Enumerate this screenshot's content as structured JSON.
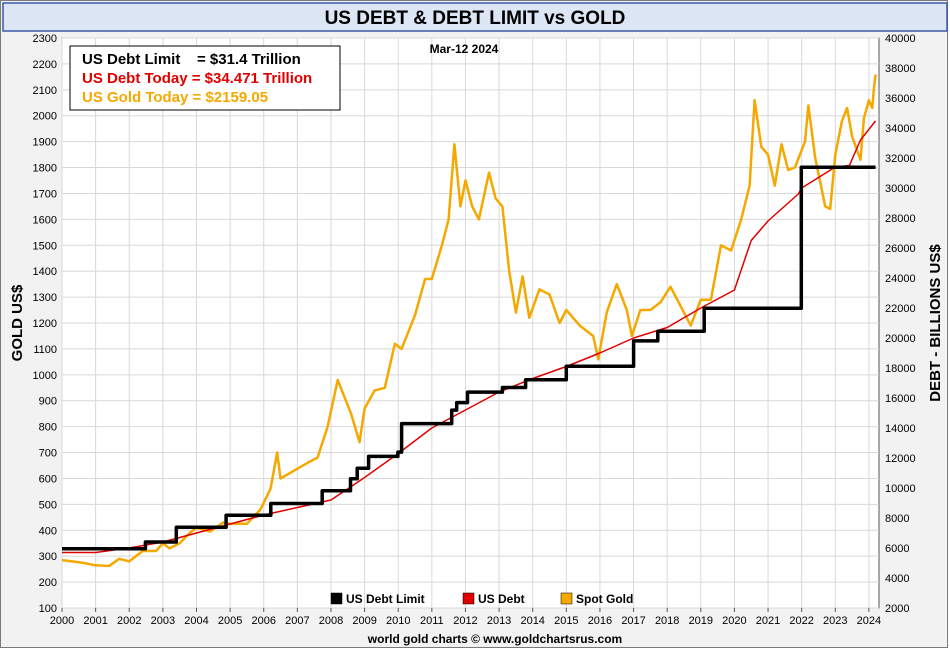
{
  "colors": {
    "debt_limit": "#000000",
    "us_debt": "#e00000",
    "spot_gold": "#f5a800",
    "title_bar": "#dde6f5",
    "title_border": "#3b5aa8"
  },
  "chart_data": {
    "type": "line",
    "title": "US DEBT & DEBT LIMIT vs GOLD",
    "date_label": "Mar-12  2024",
    "footer": "world gold charts © www.goldchartsrus.com",
    "left_axis_label": "GOLD US$",
    "right_axis_label": "DEBT - BILLIONS US$",
    "x_ticks": [
      "2000",
      "2001",
      "2002",
      "2003",
      "2004",
      "2005",
      "2006",
      "2007",
      "2008",
      "2009",
      "2010",
      "2011",
      "2012",
      "2013",
      "2014",
      "2015",
      "2016",
      "2017",
      "2018",
      "2019",
      "2020",
      "2021",
      "2022",
      "2023",
      "2024"
    ],
    "left_ylim": [
      100,
      2300
    ],
    "left_ticks": [
      "100",
      "200",
      "300",
      "400",
      "500",
      "600",
      "700",
      "800",
      "900",
      "1000",
      "1100",
      "1200",
      "1300",
      "1400",
      "1500",
      "1600",
      "1700",
      "1800",
      "1900",
      "2000",
      "2100",
      "2200",
      "2300"
    ],
    "right_ylim": [
      2000,
      40000
    ],
    "right_ticks": [
      "2000",
      "4000",
      "6000",
      "8000",
      "10000",
      "12000",
      "14000",
      "16000",
      "18000",
      "20000",
      "22000",
      "24000",
      "26000",
      "28000",
      "30000",
      "32000",
      "34000",
      "36000",
      "38000",
      "40000"
    ],
    "grid": true,
    "info_box": [
      {
        "text": "US Debt Limit    = $31.4 Trillion",
        "series": "debt_limit"
      },
      {
        "text": "US Debt Today = $34.471 Trillion",
        "series": "us_debt"
      },
      {
        "text": "US Gold Today = $2159.05",
        "series": "spot_gold"
      }
    ],
    "legend_position": "bottom-center",
    "series": [
      {
        "name": "US Debt Limit",
        "key": "debt_limit",
        "axis": "right",
        "step": true,
        "points": [
          [
            2000.0,
            5950
          ],
          [
            2002.48,
            6400
          ],
          [
            2003.4,
            7384
          ],
          [
            2004.88,
            8184
          ],
          [
            2006.21,
            8965
          ],
          [
            2007.74,
            9815
          ],
          [
            2008.58,
            10615
          ],
          [
            2008.78,
            11315
          ],
          [
            2009.12,
            12104
          ],
          [
            2009.99,
            12394
          ],
          [
            2010.1,
            14294
          ],
          [
            2011.59,
            15194
          ],
          [
            2011.74,
            15694
          ],
          [
            2012.06,
            16394
          ],
          [
            2013.1,
            16699
          ],
          [
            2013.79,
            17212
          ],
          [
            2015.0,
            18113
          ],
          [
            2017.0,
            19808
          ],
          [
            2017.72,
            20456
          ],
          [
            2019.1,
            21988
          ],
          [
            2021.99,
            31381
          ],
          [
            2024.2,
            31381
          ]
        ]
      },
      {
        "name": "US Debt",
        "key": "us_debt",
        "axis": "right",
        "points": [
          [
            2000.0,
            5700
          ],
          [
            2001.0,
            5700
          ],
          [
            2002.0,
            6000
          ],
          [
            2003.0,
            6400
          ],
          [
            2004.0,
            7000
          ],
          [
            2005.0,
            7600
          ],
          [
            2006.0,
            8200
          ],
          [
            2007.0,
            8700
          ],
          [
            2008.0,
            9200
          ],
          [
            2009.0,
            10700
          ],
          [
            2010.0,
            12300
          ],
          [
            2011.0,
            14000
          ],
          [
            2012.0,
            15200
          ],
          [
            2013.0,
            16400
          ],
          [
            2014.0,
            17300
          ],
          [
            2015.0,
            18100
          ],
          [
            2016.0,
            19000
          ],
          [
            2017.0,
            20000
          ],
          [
            2018.0,
            20700
          ],
          [
            2019.0,
            22000
          ],
          [
            2020.0,
            23200
          ],
          [
            2020.5,
            26500
          ],
          [
            2021.0,
            27800
          ],
          [
            2021.9,
            29600
          ],
          [
            2022.0,
            30000
          ],
          [
            2023.0,
            31400
          ],
          [
            2023.42,
            31500
          ],
          [
            2023.75,
            33200
          ],
          [
            2024.2,
            34471
          ]
        ]
      },
      {
        "name": "Spot Gold",
        "key": "spot_gold",
        "axis": "left",
        "points": [
          [
            2000.0,
            285
          ],
          [
            2000.3,
            280
          ],
          [
            2000.6,
            275
          ],
          [
            2001.0,
            265
          ],
          [
            2001.4,
            262
          ],
          [
            2001.7,
            290
          ],
          [
            2002.0,
            280
          ],
          [
            2002.4,
            320
          ],
          [
            2002.8,
            320
          ],
          [
            2003.0,
            350
          ],
          [
            2003.2,
            330
          ],
          [
            2003.5,
            350
          ],
          [
            2003.8,
            390
          ],
          [
            2004.0,
            410
          ],
          [
            2004.4,
            395
          ],
          [
            2004.8,
            430
          ],
          [
            2005.0,
            425
          ],
          [
            2005.5,
            425
          ],
          [
            2005.9,
            480
          ],
          [
            2006.2,
            560
          ],
          [
            2006.4,
            700
          ],
          [
            2006.5,
            600
          ],
          [
            2006.9,
            630
          ],
          [
            2007.3,
            660
          ],
          [
            2007.6,
            680
          ],
          [
            2007.9,
            800
          ],
          [
            2008.2,
            980
          ],
          [
            2008.6,
            850
          ],
          [
            2008.85,
            740
          ],
          [
            2009.0,
            870
          ],
          [
            2009.3,
            940
          ],
          [
            2009.6,
            950
          ],
          [
            2009.9,
            1120
          ],
          [
            2010.1,
            1100
          ],
          [
            2010.5,
            1230
          ],
          [
            2010.8,
            1370
          ],
          [
            2011.0,
            1370
          ],
          [
            2011.3,
            1500
          ],
          [
            2011.5,
            1600
          ],
          [
            2011.67,
            1890
          ],
          [
            2011.85,
            1650
          ],
          [
            2012.0,
            1750
          ],
          [
            2012.2,
            1650
          ],
          [
            2012.4,
            1600
          ],
          [
            2012.7,
            1780
          ],
          [
            2012.9,
            1680
          ],
          [
            2013.1,
            1650
          ],
          [
            2013.3,
            1400
          ],
          [
            2013.5,
            1240
          ],
          [
            2013.7,
            1380
          ],
          [
            2013.9,
            1220
          ],
          [
            2014.2,
            1330
          ],
          [
            2014.5,
            1310
          ],
          [
            2014.8,
            1200
          ],
          [
            2015.0,
            1250
          ],
          [
            2015.4,
            1190
          ],
          [
            2015.8,
            1150
          ],
          [
            2015.95,
            1060
          ],
          [
            2016.2,
            1240
          ],
          [
            2016.5,
            1350
          ],
          [
            2016.8,
            1250
          ],
          [
            2016.95,
            1150
          ],
          [
            2017.2,
            1250
          ],
          [
            2017.5,
            1250
          ],
          [
            2017.8,
            1280
          ],
          [
            2018.1,
            1340
          ],
          [
            2018.5,
            1240
          ],
          [
            2018.7,
            1190
          ],
          [
            2019.0,
            1290
          ],
          [
            2019.3,
            1290
          ],
          [
            2019.6,
            1500
          ],
          [
            2019.9,
            1480
          ],
          [
            2020.2,
            1600
          ],
          [
            2020.45,
            1730
          ],
          [
            2020.6,
            2060
          ],
          [
            2020.8,
            1880
          ],
          [
            2021.0,
            1850
          ],
          [
            2021.2,
            1730
          ],
          [
            2021.4,
            1890
          ],
          [
            2021.6,
            1790
          ],
          [
            2021.8,
            1800
          ],
          [
            2022.1,
            1900
          ],
          [
            2022.2,
            2040
          ],
          [
            2022.4,
            1840
          ],
          [
            2022.7,
            1650
          ],
          [
            2022.85,
            1640
          ],
          [
            2023.0,
            1850
          ],
          [
            2023.2,
            1980
          ],
          [
            2023.35,
            2030
          ],
          [
            2023.5,
            1920
          ],
          [
            2023.75,
            1830
          ],
          [
            2023.85,
            1990
          ],
          [
            2024.0,
            2060
          ],
          [
            2024.1,
            2030
          ],
          [
            2024.15,
            2110
          ],
          [
            2024.2,
            2159
          ]
        ]
      }
    ]
  }
}
